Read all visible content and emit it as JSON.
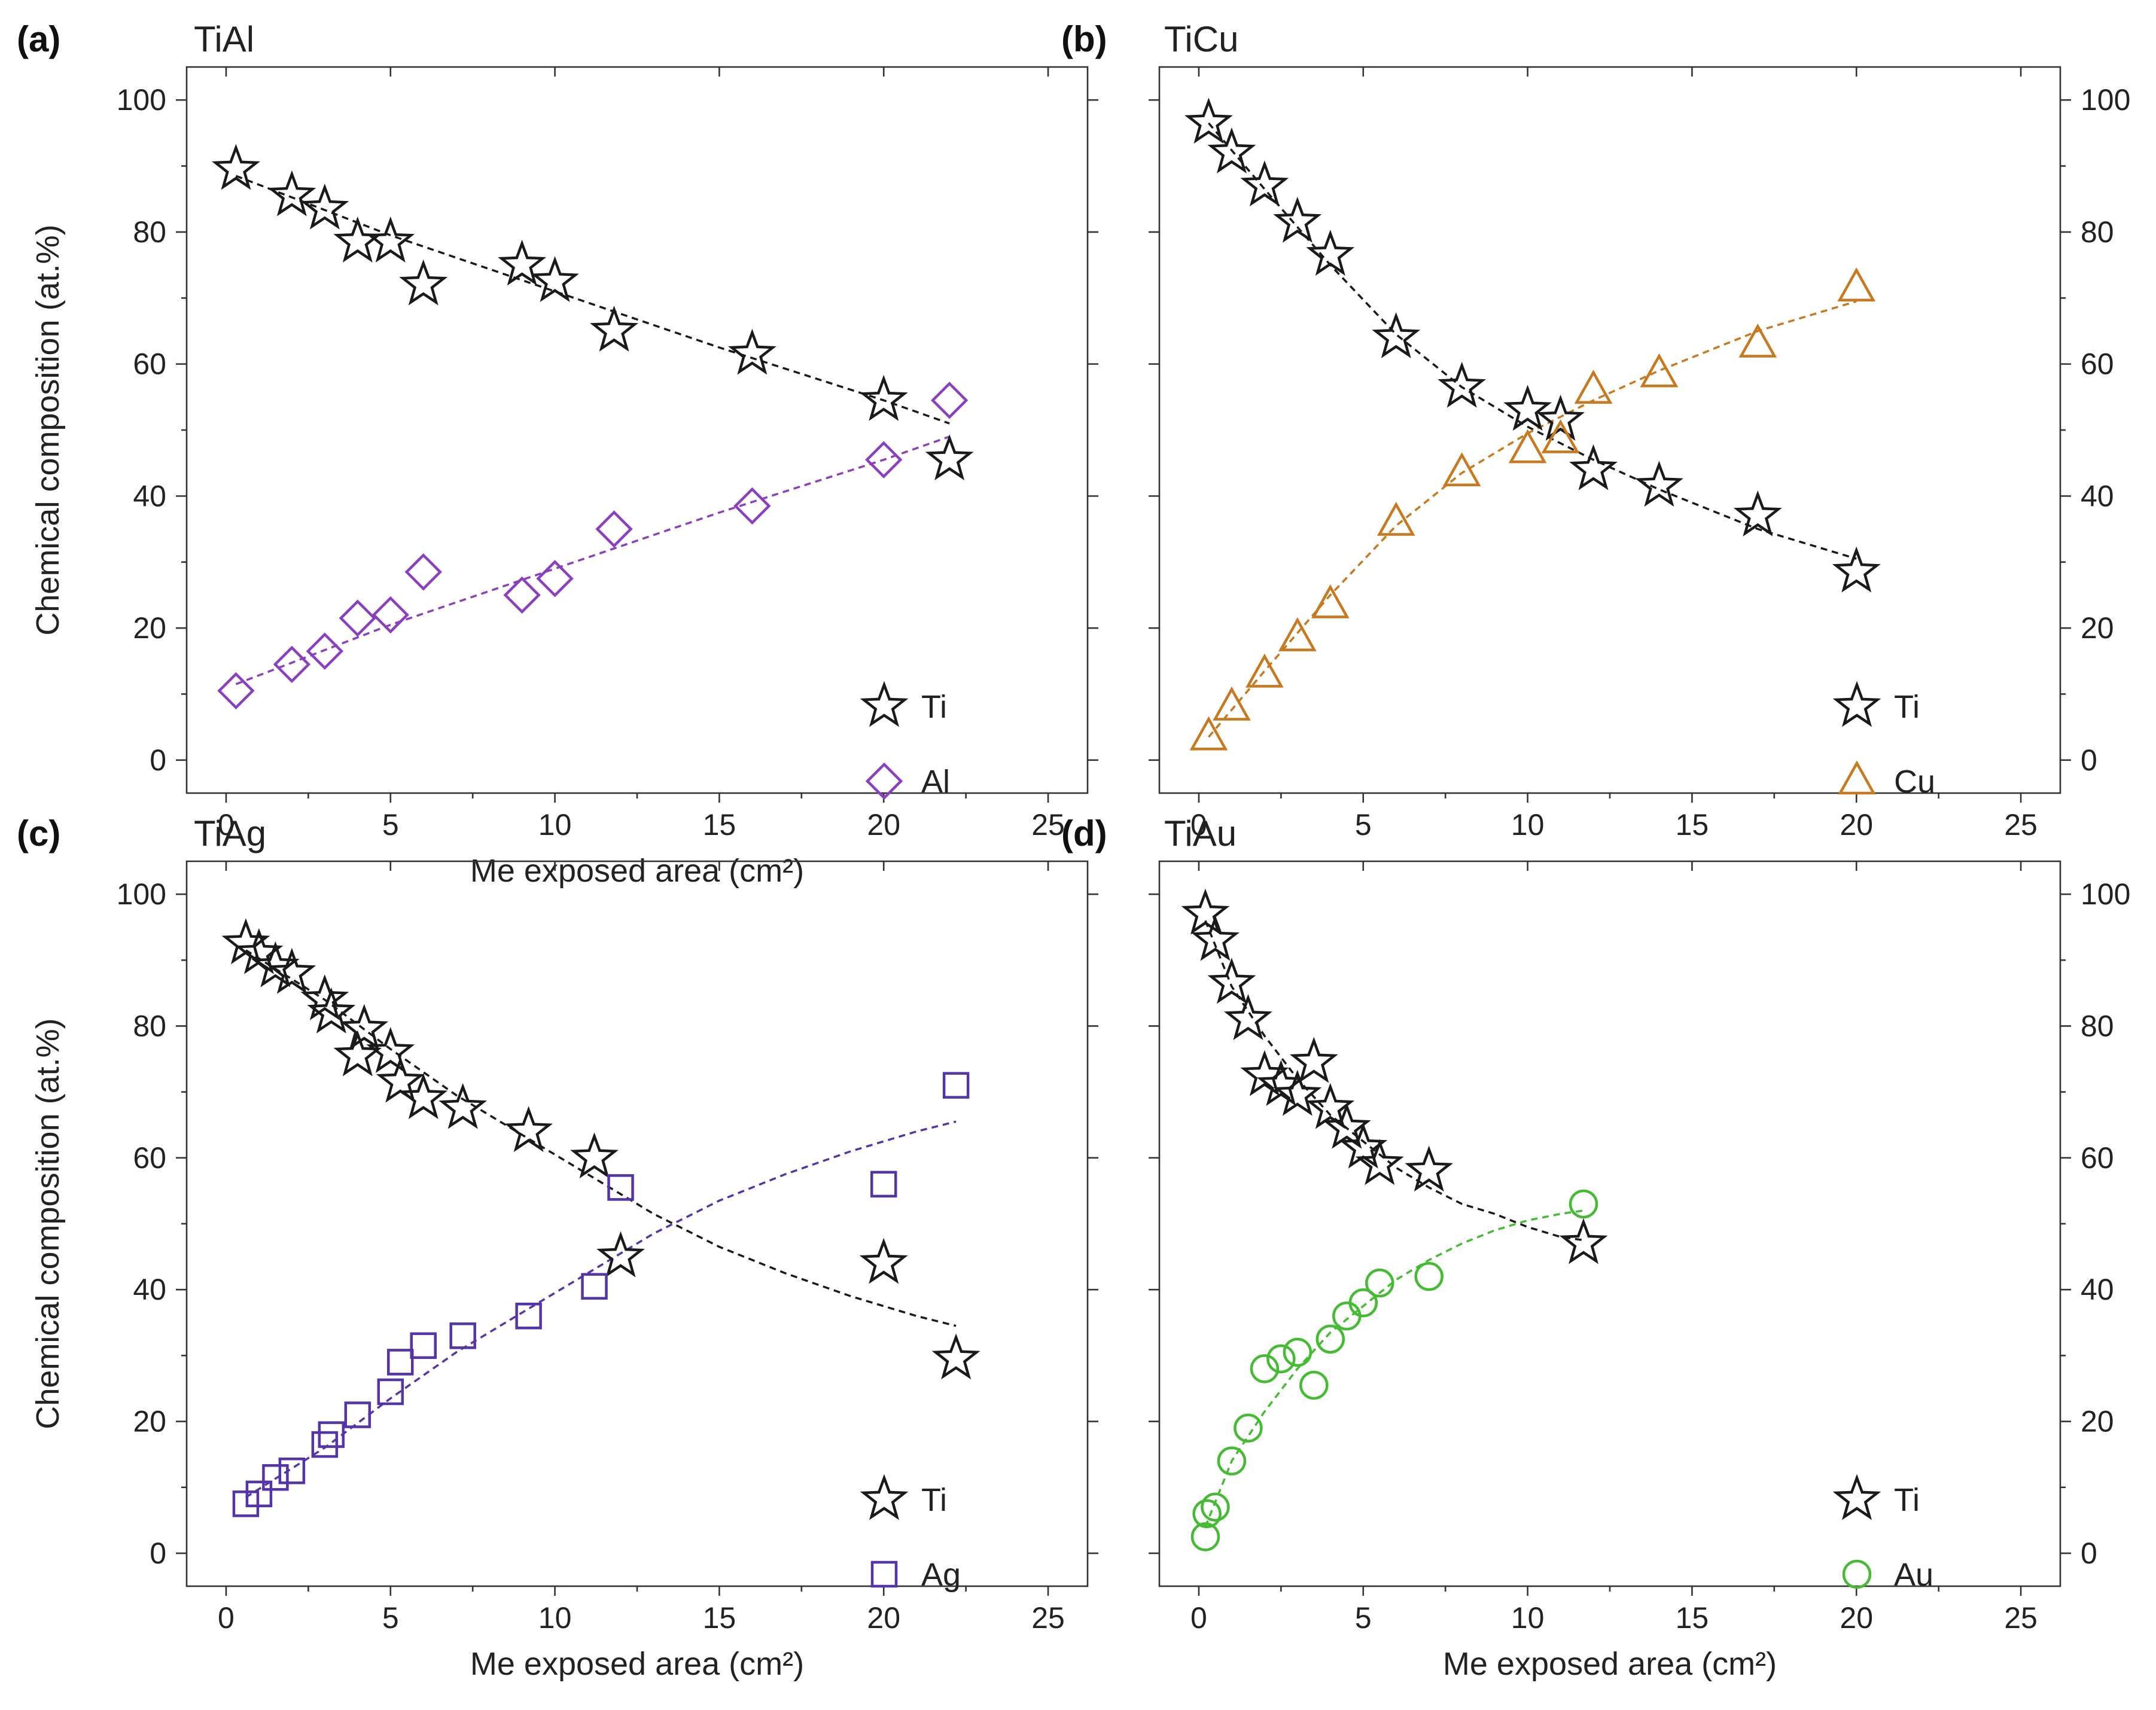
{
  "chart_data": [
    {
      "type": "scatter",
      "panel_label": "(a)",
      "title": "TiAl",
      "title_color": "#8a3fc0",
      "xlabel": "Me exposed area (cm²)",
      "ylabel": "Chemical composition (at.%)",
      "xlim": [
        -1.2,
        26.2
      ],
      "ylim": [
        -5,
        105
      ],
      "xticks": [
        0,
        5,
        10,
        15,
        20,
        25
      ],
      "yticks": [
        0,
        20,
        40,
        60,
        80,
        100
      ],
      "y_axis_side": "left",
      "legend_position": "bottom-right",
      "series": [
        {
          "name": "Ti",
          "marker": "star",
          "color": "#1a1a1a",
          "x": [
            0.3,
            2.0,
            3.0,
            4.0,
            5.0,
            6.0,
            9.0,
            10.0,
            11.8,
            16.0,
            20.0,
            22.0
          ],
          "y": [
            89.5,
            85.5,
            83.5,
            78.5,
            78.5,
            72.0,
            75.0,
            72.5,
            65.0,
            61.5,
            54.5,
            45.5
          ],
          "fit": {
            "x": [
              0.3,
              5,
              10,
              15,
              20,
              22
            ],
            "y": [
              88.5,
              79.5,
              71.0,
              62.5,
              54.5,
              51.0
            ]
          }
        },
        {
          "name": "Al",
          "marker": "diamond",
          "color": "#8a3fc0",
          "x": [
            0.3,
            2.0,
            3.0,
            4.0,
            5.0,
            6.0,
            9.0,
            10.0,
            11.8,
            16.0,
            20.0,
            22.0
          ],
          "y": [
            10.5,
            14.5,
            16.5,
            21.5,
            22.0,
            28.5,
            25.0,
            27.5,
            35.0,
            38.5,
            45.5,
            54.5
          ],
          "fit": {
            "x": [
              0.3,
              5,
              10,
              15,
              20,
              22
            ],
            "y": [
              11.5,
              20.5,
              29.0,
              37.5,
              45.5,
              49.0
            ]
          }
        }
      ]
    },
    {
      "type": "scatter",
      "panel_label": "(b)",
      "title": "TiCu",
      "title_color": "#a01818",
      "xlabel": "",
      "ylabel": "",
      "xlim": [
        -1.2,
        26.2
      ],
      "ylim": [
        -5,
        105
      ],
      "xticks": [
        0,
        5,
        10,
        15,
        20,
        25
      ],
      "yticks": [
        0,
        20,
        40,
        60,
        80,
        100
      ],
      "y_axis_side": "right",
      "legend_position": "bottom-right",
      "series": [
        {
          "name": "Ti",
          "marker": "star",
          "color": "#1a1a1a",
          "x": [
            0.3,
            1.0,
            2.0,
            3.0,
            4.0,
            6.0,
            8.0,
            10.0,
            11.0,
            12.0,
            14.0,
            17.0,
            20.0
          ],
          "y": [
            96.5,
            92.0,
            87.0,
            81.5,
            76.5,
            64.0,
            56.5,
            53.0,
            51.5,
            44.0,
            41.5,
            37.0,
            28.5
          ],
          "fit": {
            "x": [
              0.3,
              2,
              4,
              6,
              8,
              10,
              12,
              14,
              17,
              20
            ],
            "y": [
              96.5,
              86.5,
              75.0,
              64.5,
              56.5,
              50.5,
              45.5,
              41.0,
              35.0,
              30.5
            ]
          }
        },
        {
          "name": "Cu",
          "marker": "triangle",
          "color": "#c8781e",
          "x": [
            0.3,
            1.0,
            2.0,
            3.0,
            4.0,
            6.0,
            8.0,
            10.0,
            11.0,
            12.0,
            14.0,
            17.0,
            20.0
          ],
          "y": [
            3.5,
            8.0,
            13.0,
            18.5,
            23.5,
            36.0,
            43.5,
            47.0,
            48.5,
            56.0,
            58.5,
            63.0,
            71.5
          ],
          "fit": {
            "x": [
              0.3,
              2,
              4,
              6,
              8,
              10,
              12,
              14,
              17,
              20
            ],
            "y": [
              3.5,
              13.5,
              25.0,
              35.5,
              43.5,
              49.5,
              54.5,
              59.0,
              65.0,
              69.5
            ]
          }
        }
      ]
    },
    {
      "type": "scatter",
      "panel_label": "(c)",
      "title": "TiAg",
      "title_color": "#5533a8",
      "xlabel": "Me exposed area (cm²)",
      "ylabel": "Chemical composition (at.%)",
      "xlim": [
        -1.2,
        26.2
      ],
      "ylim": [
        -5,
        105
      ],
      "xticks": [
        0,
        5,
        10,
        15,
        20,
        25
      ],
      "yticks": [
        0,
        20,
        40,
        60,
        80,
        100
      ],
      "y_axis_side": "left",
      "legend_position": "bottom-right",
      "series": [
        {
          "name": "Ti",
          "marker": "star",
          "color": "#1a1a1a",
          "x": [
            0.6,
            1.0,
            1.5,
            2.0,
            3.0,
            3.2,
            4.0,
            4.2,
            5.0,
            5.3,
            6.0,
            7.2,
            9.2,
            11.2,
            12.0,
            20.0,
            22.2
          ],
          "y": [
            92.5,
            91.0,
            89.0,
            88.0,
            84.0,
            82.0,
            75.5,
            79.5,
            76.0,
            71.5,
            69.0,
            67.5,
            64.0,
            60.0,
            45.0,
            44.0,
            29.5
          ],
          "fit": {
            "x": [
              0.6,
              3,
              5,
              7,
              9,
              11,
              13,
              15,
              17,
              19,
              21,
              22.2
            ],
            "y": [
              91.5,
              84.0,
              76.5,
              69.5,
              63.5,
              57.5,
              51.5,
              46.5,
              42.5,
              39.0,
              36.0,
              34.5
            ]
          }
        },
        {
          "name": "Ag",
          "marker": "square",
          "color": "#5533a8",
          "x": [
            0.6,
            1.0,
            1.5,
            2.0,
            3.0,
            3.2,
            4.0,
            5.0,
            5.3,
            6.0,
            7.2,
            9.2,
            11.2,
            12.0,
            20.0,
            22.2
          ],
          "y": [
            7.5,
            9.0,
            11.5,
            12.5,
            16.5,
            18.0,
            21.0,
            24.5,
            29.0,
            31.5,
            33.0,
            36.0,
            40.5,
            55.5,
            56.0,
            71.0
          ],
          "fit": {
            "x": [
              0.6,
              3,
              5,
              7,
              9,
              11,
              13,
              15,
              17,
              19,
              21,
              22.2
            ],
            "y": [
              8.5,
              16.0,
              23.5,
              30.5,
              36.5,
              42.5,
              48.5,
              53.5,
              57.5,
              61.0,
              64.0,
              65.5
            ]
          }
        }
      ]
    },
    {
      "type": "scatter",
      "panel_label": "(d)",
      "title": "TiAu",
      "title_color": "#33aa22",
      "xlabel": "Me exposed area (cm²)",
      "ylabel": "",
      "xlim": [
        -1.2,
        26.2
      ],
      "ylim": [
        -5,
        105
      ],
      "xticks": [
        0,
        5,
        10,
        15,
        20,
        25
      ],
      "yticks": [
        0,
        20,
        40,
        60,
        80,
        100
      ],
      "y_axis_side": "right",
      "legend_position": "bottom-right",
      "series": [
        {
          "name": "Ti",
          "marker": "star",
          "color": "#1a1a1a",
          "x": [
            0.2,
            0.5,
            1.0,
            1.5,
            2.0,
            2.5,
            3.0,
            3.5,
            4.0,
            4.5,
            5.0,
            5.5,
            7.0,
            11.7
          ],
          "y": [
            97.0,
            93.0,
            86.5,
            81.0,
            72.5,
            71.0,
            69.5,
            74.5,
            67.5,
            64.5,
            61.5,
            59.0,
            58.0,
            47.0
          ],
          "fit": {
            "x": [
              0.2,
              1,
              2,
              3,
              4,
              5,
              6,
              7,
              8,
              9,
              10,
              11,
              11.7
            ],
            "y": [
              96.0,
              86.0,
              78.5,
              72.0,
              66.5,
              62.5,
              58.5,
              55.5,
              53.0,
              51.5,
              49.5,
              48.0,
              47.5
            ]
          }
        },
        {
          "name": "Au",
          "marker": "circle",
          "color": "#44bb33",
          "x": [
            0.2,
            0.25,
            0.5,
            1.0,
            1.5,
            2.0,
            2.5,
            3.0,
            3.5,
            4.0,
            4.5,
            5.0,
            5.5,
            7.0,
            11.7
          ],
          "y": [
            2.5,
            6.0,
            7.0,
            14.0,
            19.0,
            28.0,
            29.5,
            30.5,
            25.5,
            32.5,
            36.0,
            38.0,
            41.0,
            42.0,
            53.0
          ],
          "fit": {
            "x": [
              0.2,
              1,
              2,
              3,
              4,
              5,
              6,
              7,
              8,
              9,
              10,
              11,
              11.7
            ],
            "y": [
              4.0,
              14.0,
              21.5,
              28.0,
              33.5,
              37.5,
              41.5,
              44.5,
              47.0,
              49.0,
              50.5,
              51.5,
              52.0
            ]
          }
        }
      ]
    }
  ]
}
